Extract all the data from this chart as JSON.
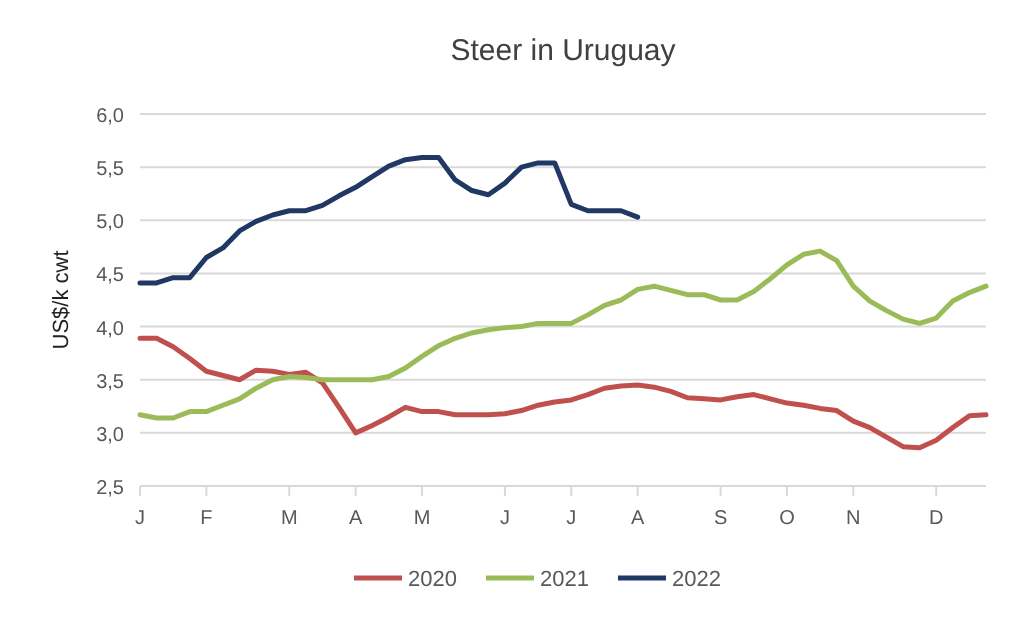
{
  "chart_data": {
    "type": "line",
    "title": "Steer in Uruguay",
    "ylabel": "US$/k cwt",
    "categories": [
      "J",
      null,
      null,
      null,
      "F",
      null,
      null,
      null,
      null,
      "M",
      null,
      null,
      null,
      "A",
      null,
      null,
      null,
      "M",
      null,
      null,
      null,
      null,
      "J",
      null,
      null,
      null,
      "J",
      null,
      null,
      null,
      "A",
      null,
      null,
      null,
      null,
      "S",
      null,
      null,
      null,
      "O",
      null,
      null,
      null,
      "N",
      null,
      null,
      null,
      null,
      "D",
      null,
      null,
      null
    ],
    "ylim": [
      2.5,
      6
    ],
    "yticks": [
      {
        "value": 2.5,
        "label": "2,5"
      },
      {
        "value": 3,
        "label": "3,0"
      },
      {
        "value": 3.5,
        "label": "3,5"
      },
      {
        "value": 4,
        "label": "4,0"
      },
      {
        "value": 4.5,
        "label": "4,5"
      },
      {
        "value": 5,
        "label": "5,0"
      },
      {
        "value": 5.5,
        "label": "5,5"
      },
      {
        "value": 6,
        "label": "6,0"
      }
    ],
    "grid": "y",
    "legend": "bottom",
    "marker": "none",
    "line_style": "solid",
    "series": [
      {
        "name": "2020",
        "color": "#c0504d",
        "values": [
          3.89,
          3.89,
          3.81,
          3.7,
          3.58,
          3.54,
          3.5,
          3.59,
          3.58,
          3.55,
          3.57,
          3.47,
          3.24,
          3.0,
          3.07,
          3.15,
          3.24,
          3.2,
          3.2,
          3.17,
          3.17,
          3.17,
          3.18,
          3.21,
          3.26,
          3.29,
          3.31,
          3.36,
          3.42,
          3.44,
          3.45,
          3.43,
          3.39,
          3.33,
          3.32,
          3.31,
          3.34,
          3.36,
          3.32,
          3.28,
          3.26,
          3.23,
          3.21,
          3.11,
          3.05,
          2.96,
          2.87,
          2.86,
          2.93,
          3.05,
          3.16,
          3.17
        ]
      },
      {
        "name": "2021",
        "color": "#9bbb59",
        "values": [
          3.17,
          3.14,
          3.14,
          3.2,
          3.2,
          3.26,
          3.32,
          3.42,
          3.5,
          3.53,
          3.52,
          3.5,
          3.5,
          3.5,
          3.5,
          3.53,
          3.61,
          3.72,
          3.82,
          3.89,
          3.94,
          3.97,
          3.99,
          4.0,
          4.03,
          4.03,
          4.03,
          4.11,
          4.2,
          4.25,
          4.35,
          4.38,
          4.34,
          4.3,
          4.3,
          4.25,
          4.25,
          4.33,
          4.45,
          4.58,
          4.68,
          4.71,
          4.62,
          4.38,
          4.24,
          4.15,
          4.07,
          4.03,
          4.08,
          4.24,
          4.32,
          4.38
        ]
      },
      {
        "name": "2022",
        "color": "#1f3864",
        "values": [
          4.41,
          4.41,
          4.46,
          4.46,
          4.65,
          4.74,
          4.9,
          4.99,
          5.05,
          5.09,
          5.09,
          5.14,
          5.23,
          5.31,
          5.41,
          5.51,
          5.57,
          5.59,
          5.59,
          5.38,
          5.28,
          5.24,
          5.35,
          5.5,
          5.54,
          5.54,
          5.15,
          5.09,
          5.09,
          5.09,
          5.03,
          null,
          null,
          null,
          null,
          null,
          null,
          null,
          null,
          null,
          null,
          null,
          null,
          null,
          null,
          null,
          null,
          null,
          null,
          null,
          null,
          null
        ]
      }
    ]
  }
}
